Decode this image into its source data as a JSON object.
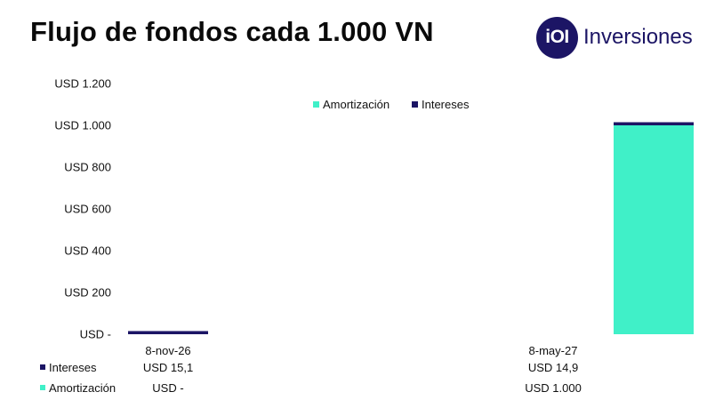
{
  "header": {
    "title": "Flujo de fondos cada 1.000 VN",
    "brand_mark": "iOI",
    "brand_name": "Inversiones"
  },
  "colors": {
    "intereses": "#1c1565",
    "amortizacion": "#40f0c8",
    "brand": "#1c1565"
  },
  "chart_data": {
    "type": "bar",
    "stacked": true,
    "title": "Flujo de fondos cada 1.000 VN",
    "categories": [
      "8-nov-26",
      "8-may-27"
    ],
    "series": [
      {
        "name": "Amortización",
        "key": "amortizacion",
        "values": [
          0,
          1000
        ],
        "labels": [
          "USD -",
          "USD 1.000"
        ]
      },
      {
        "name": "Intereses",
        "key": "intereses",
        "values": [
          15.1,
          14.9
        ],
        "labels": [
          "USD 15,1",
          "USD 14,9"
        ]
      }
    ],
    "ylim": [
      0,
      1200
    ],
    "yticks": [
      {
        "value": 0,
        "label": "USD -"
      },
      {
        "value": 200,
        "label": "USD 200"
      },
      {
        "value": 400,
        "label": "USD 400"
      },
      {
        "value": 600,
        "label": "USD 600"
      },
      {
        "value": 800,
        "label": "USD 800"
      },
      {
        "value": 1000,
        "label": "USD 1.000"
      },
      {
        "value": 1200,
        "label": "USD 1.200"
      }
    ],
    "grid": false,
    "legend": {
      "position": "top-center",
      "order": [
        "amortizacion",
        "intereses"
      ]
    },
    "data_table": {
      "rows": [
        {
          "key": "intereses",
          "label": "Intereses",
          "cells": [
            "USD 15,1",
            "USD 14,9"
          ]
        },
        {
          "key": "amortizacion",
          "label": "Amortización",
          "cells": [
            "USD -",
            "USD 1.000"
          ]
        }
      ]
    }
  }
}
